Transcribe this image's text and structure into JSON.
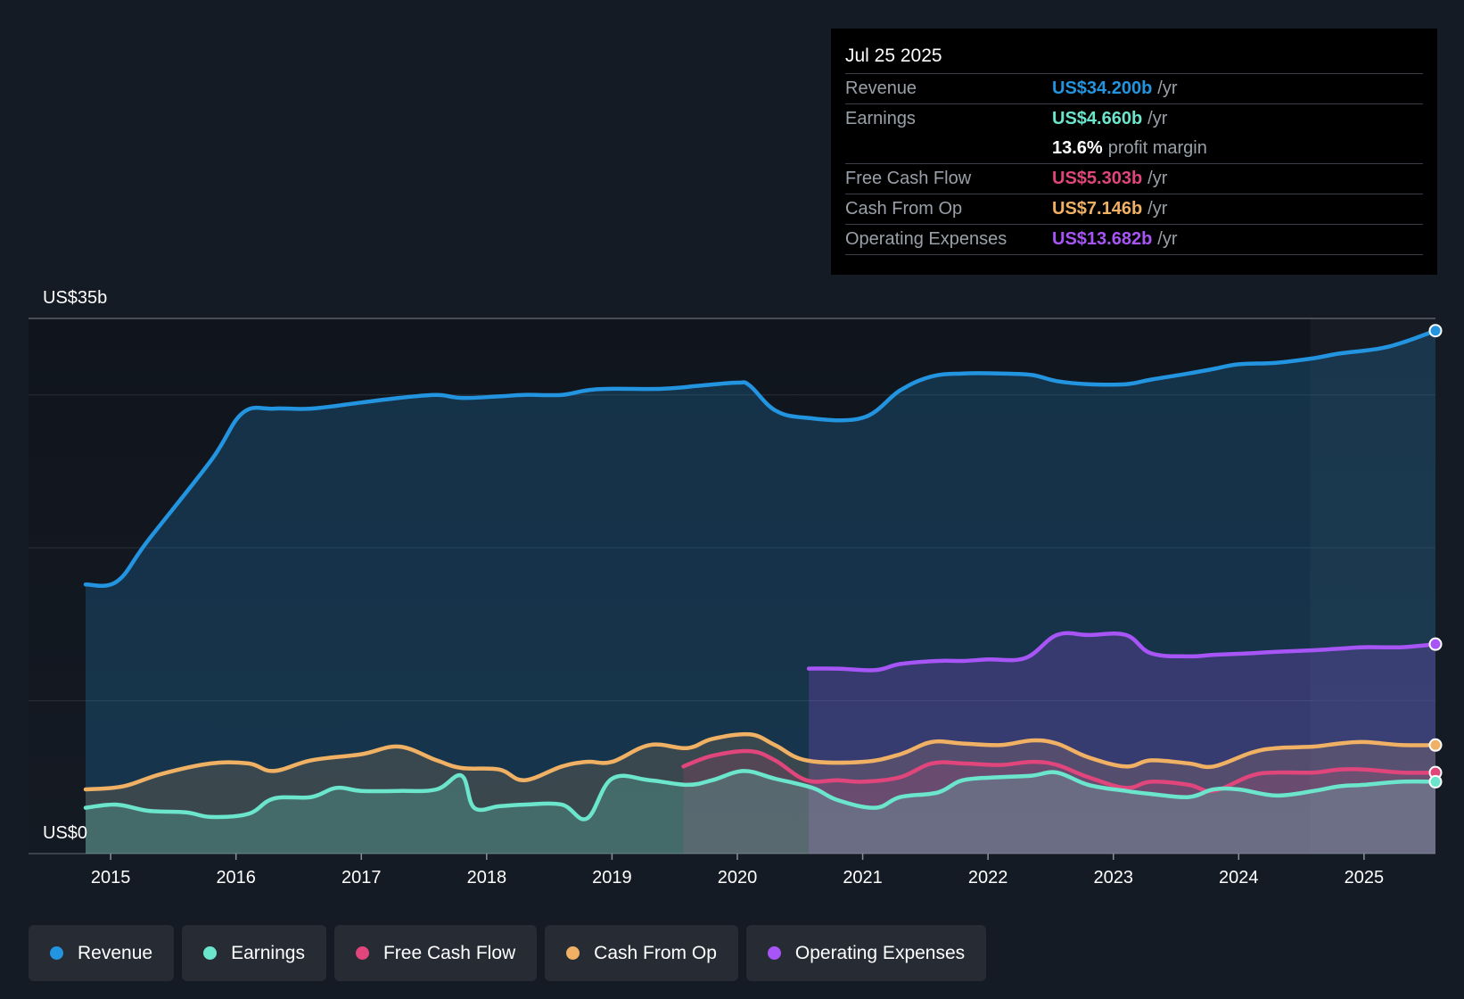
{
  "tooltip": {
    "date": "Jul 25 2025",
    "rows": [
      {
        "label": "Revenue",
        "value": "US$34.200b",
        "unit": "/yr",
        "color": "#2394df"
      },
      {
        "label": "Earnings",
        "value": "US$4.660b",
        "unit": "/yr",
        "color": "#6ce5cd"
      },
      {
        "label": "",
        "value": "13.6%",
        "unit": "profit margin",
        "color": "#ffffff"
      },
      {
        "label": "Free Cash Flow",
        "value": "US$5.303b",
        "unit": "/yr",
        "color": "#e0457b"
      },
      {
        "label": "Cash From Op",
        "value": "US$7.146b",
        "unit": "/yr",
        "color": "#f0b164"
      },
      {
        "label": "Operating Expenses",
        "value": "US$13.682b",
        "unit": "/yr",
        "color": "#a855f7"
      }
    ]
  },
  "legend": [
    {
      "label": "Revenue",
      "color": "#2394df"
    },
    {
      "label": "Earnings",
      "color": "#6ce5cd"
    },
    {
      "label": "Free Cash Flow",
      "color": "#e0457b"
    },
    {
      "label": "Cash From Op",
      "color": "#f0b164"
    },
    {
      "label": "Operating Expenses",
      "color": "#a855f7"
    }
  ],
  "chart_data": {
    "type": "area",
    "title": "",
    "ylabel_top": "US$35b",
    "ylabel_bottom": "US$0",
    "ylim": [
      0,
      35
    ],
    "xlim": [
      2014.8,
      2025.57
    ],
    "x_ticks": [
      2015,
      2016,
      2017,
      2018,
      2019,
      2020,
      2021,
      2022,
      2023,
      2024,
      2025
    ],
    "x_tick_labels": [
      "2015",
      "2016",
      "2017",
      "2018",
      "2019",
      "2020",
      "2021",
      "2022",
      "2023",
      "2024",
      "2025"
    ],
    "gridlines": [
      0,
      10,
      20,
      30,
      35
    ],
    "forecast_start": 2024.57,
    "series": [
      {
        "name": "Revenue",
        "color": "#2394df",
        "fill": true,
        "x": [
          2014.8,
          2015.05,
          2015.3,
          2015.8,
          2016.05,
          2016.3,
          2016.6,
          2017.0,
          2017.3,
          2017.6,
          2017.8,
          2018.1,
          2018.3,
          2018.6,
          2018.8,
          2019.0,
          2019.4,
          2019.7,
          2020.0,
          2020.1,
          2020.3,
          2020.55,
          2021.0,
          2021.3,
          2021.55,
          2021.8,
          2022.1,
          2022.35,
          2022.55,
          2022.8,
          2023.1,
          2023.3,
          2023.6,
          2023.8,
          2024.0,
          2024.3,
          2024.6,
          2024.8,
          2025.1,
          2025.3,
          2025.57
        ],
        "values": [
          17.6,
          17.8,
          20.5,
          25.7,
          28.8,
          29.1,
          29.1,
          29.5,
          29.8,
          30.0,
          29.8,
          29.9,
          30.0,
          30.0,
          30.3,
          30.4,
          30.4,
          30.6,
          30.8,
          30.6,
          29.0,
          28.5,
          28.5,
          30.3,
          31.2,
          31.4,
          31.4,
          31.3,
          30.9,
          30.7,
          30.7,
          31.0,
          31.4,
          31.7,
          32.0,
          32.1,
          32.4,
          32.7,
          33.0,
          33.4,
          34.2
        ]
      },
      {
        "name": "Operating Expenses",
        "color": "#a855f7",
        "fill": true,
        "x": [
          2020.57,
          2020.8,
          2021.1,
          2021.3,
          2021.6,
          2021.8,
          2022.0,
          2022.3,
          2022.55,
          2022.8,
          2023.1,
          2023.3,
          2023.6,
          2023.8,
          2024.1,
          2024.3,
          2024.6,
          2024.8,
          2025.0,
          2025.3,
          2025.57
        ],
        "values": [
          12.1,
          12.1,
          12.0,
          12.4,
          12.6,
          12.6,
          12.7,
          12.8,
          14.3,
          14.3,
          14.3,
          13.1,
          12.9,
          13.0,
          13.1,
          13.2,
          13.3,
          13.4,
          13.5,
          13.5,
          13.7
        ]
      },
      {
        "name": "Cash From Op",
        "color": "#f0b164",
        "fill": true,
        "x": [
          2014.8,
          2015.1,
          2015.4,
          2015.8,
          2016.1,
          2016.3,
          2016.6,
          2017.0,
          2017.3,
          2017.6,
          2017.8,
          2018.1,
          2018.3,
          2018.6,
          2018.8,
          2019.0,
          2019.3,
          2019.6,
          2019.8,
          2020.1,
          2020.3,
          2020.55,
          2021.0,
          2021.3,
          2021.55,
          2021.8,
          2022.1,
          2022.35,
          2022.55,
          2022.8,
          2023.1,
          2023.3,
          2023.6,
          2023.8,
          2024.1,
          2024.3,
          2024.6,
          2024.8,
          2025.0,
          2025.3,
          2025.57
        ],
        "values": [
          4.2,
          4.4,
          5.2,
          5.9,
          5.9,
          5.4,
          6.1,
          6.5,
          7.0,
          6.1,
          5.6,
          5.5,
          4.8,
          5.7,
          6.0,
          6.0,
          7.1,
          6.9,
          7.5,
          7.8,
          7.1,
          6.1,
          6.0,
          6.5,
          7.3,
          7.2,
          7.1,
          7.4,
          7.2,
          6.3,
          5.7,
          6.1,
          5.9,
          5.7,
          6.6,
          6.9,
          7.0,
          7.2,
          7.3,
          7.1,
          7.1
        ]
      },
      {
        "name": "Free Cash Flow",
        "color": "#e0457b",
        "fill": true,
        "x": [
          2019.57,
          2019.8,
          2020.1,
          2020.3,
          2020.55,
          2020.8,
          2021.0,
          2021.3,
          2021.55,
          2021.8,
          2022.1,
          2022.35,
          2022.55,
          2022.8,
          2023.1,
          2023.3,
          2023.6,
          2023.8,
          2024.1,
          2024.3,
          2024.6,
          2024.8,
          2025.0,
          2025.3,
          2025.57
        ],
        "values": [
          5.7,
          6.4,
          6.7,
          6.1,
          4.8,
          4.8,
          4.7,
          5.0,
          5.9,
          5.9,
          5.8,
          6.0,
          5.8,
          5.0,
          4.3,
          4.7,
          4.5,
          4.1,
          5.1,
          5.3,
          5.3,
          5.5,
          5.5,
          5.3,
          5.3
        ]
      },
      {
        "name": "Earnings",
        "color": "#6ce5cd",
        "fill": true,
        "x": [
          2014.8,
          2015.05,
          2015.3,
          2015.6,
          2015.8,
          2016.1,
          2016.3,
          2016.6,
          2016.8,
          2017.0,
          2017.3,
          2017.6,
          2017.8,
          2017.9,
          2018.1,
          2018.3,
          2018.6,
          2018.8,
          2019.0,
          2019.3,
          2019.6,
          2019.8,
          2020.05,
          2020.3,
          2020.6,
          2020.8,
          2021.1,
          2021.3,
          2021.6,
          2021.8,
          2022.1,
          2022.35,
          2022.55,
          2022.8,
          2023.1,
          2023.3,
          2023.6,
          2023.8,
          2024.0,
          2024.3,
          2024.6,
          2024.8,
          2025.0,
          2025.3,
          2025.57
        ],
        "values": [
          3.0,
          3.2,
          2.8,
          2.7,
          2.4,
          2.6,
          3.6,
          3.7,
          4.3,
          4.1,
          4.1,
          4.2,
          5.1,
          3.0,
          3.1,
          3.2,
          3.2,
          2.3,
          4.9,
          4.8,
          4.5,
          4.8,
          5.4,
          4.9,
          4.3,
          3.5,
          3.0,
          3.7,
          4.0,
          4.8,
          5.0,
          5.1,
          5.3,
          4.5,
          4.1,
          3.9,
          3.7,
          4.2,
          4.2,
          3.8,
          4.1,
          4.4,
          4.5,
          4.7,
          4.7
        ]
      }
    ]
  }
}
